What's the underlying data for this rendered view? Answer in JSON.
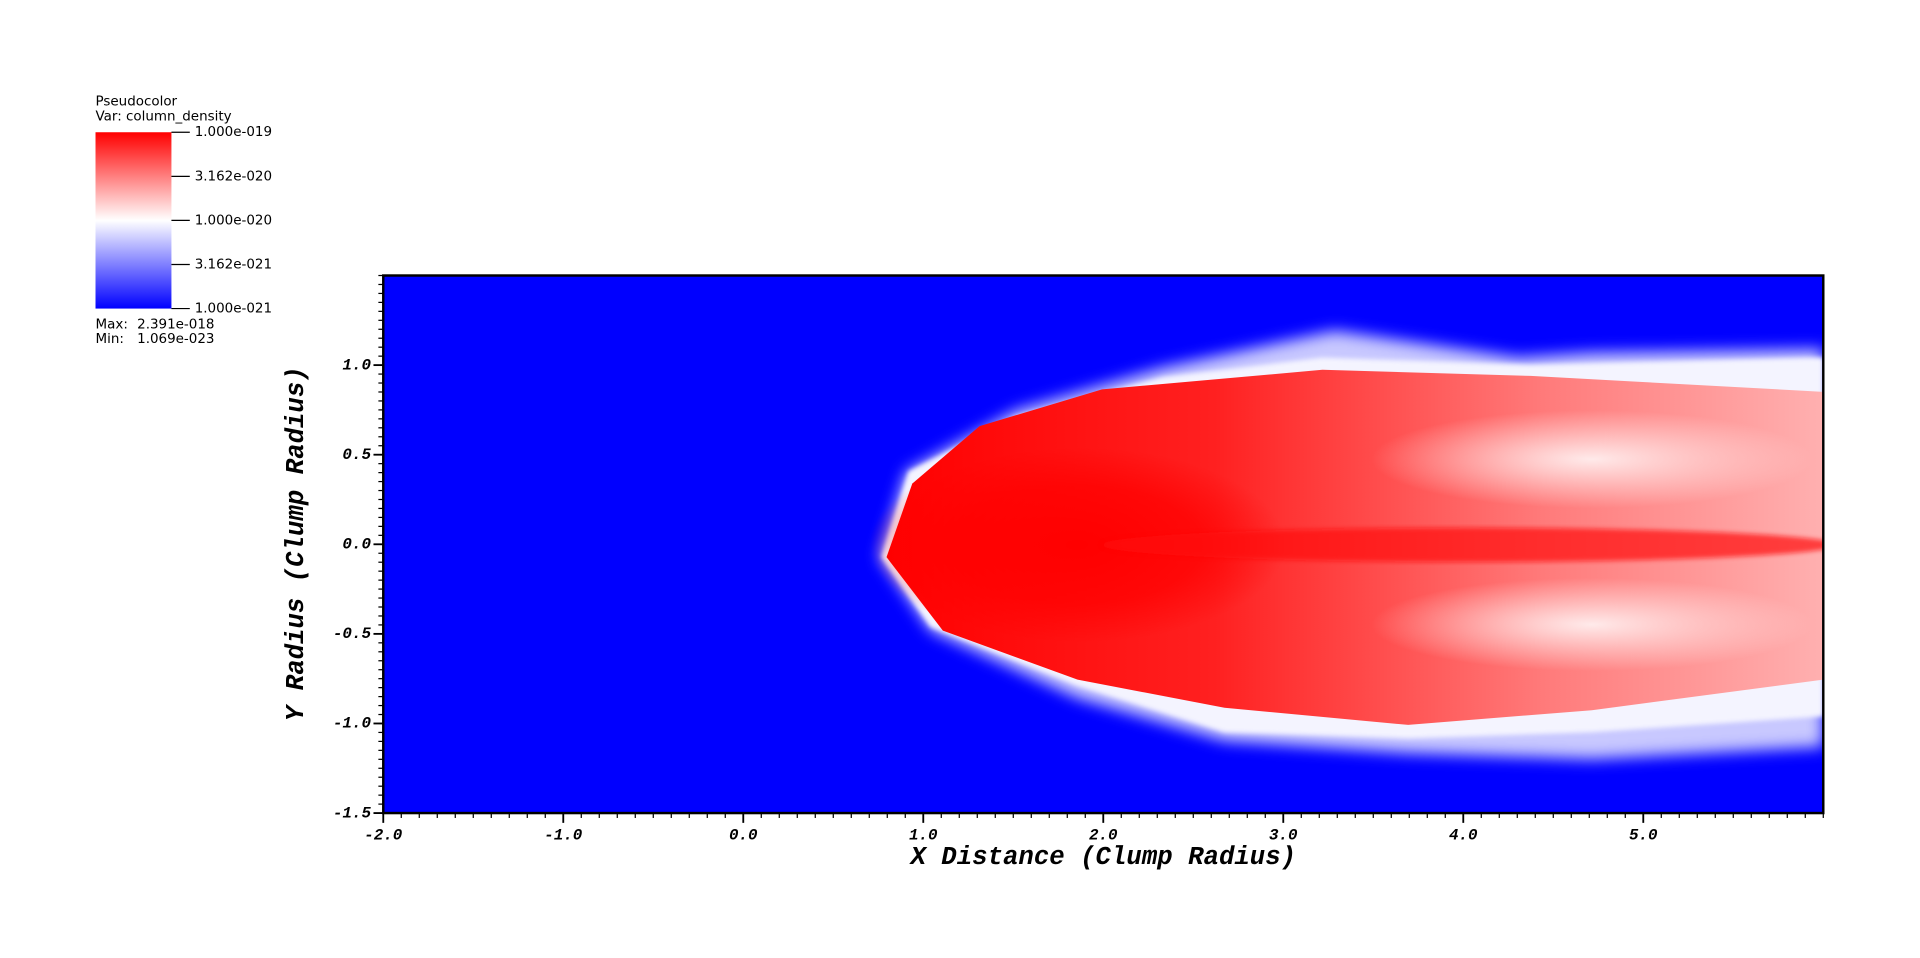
{
  "chart_data": {
    "type": "pseudocolor",
    "xlabel": "X Distance (Clump Radius)",
    "ylabel": "Y Radius (Clump Radius)",
    "xlim": [
      -2,
      6
    ],
    "ylim": [
      -1.5,
      1.5
    ],
    "xticks": [
      {
        "value": -2,
        "label": "-2.0"
      },
      {
        "value": -1,
        "label": "-1.0"
      },
      {
        "value": 0,
        "label": "0.0"
      },
      {
        "value": 1,
        "label": "1.0"
      },
      {
        "value": 2,
        "label": "2.0"
      },
      {
        "value": 3,
        "label": "3.0"
      },
      {
        "value": 4,
        "label": "4.0"
      },
      {
        "value": 5,
        "label": "5.0"
      }
    ],
    "yticks": [
      {
        "value": -1.5,
        "label": "-1.5"
      },
      {
        "value": -1,
        "label": "-1.0"
      },
      {
        "value": -0.5,
        "label": "-0.5"
      },
      {
        "value": 0,
        "label": "0.0"
      },
      {
        "value": 0.5,
        "label": "0.5"
      },
      {
        "value": 1,
        "label": "1.0"
      }
    ],
    "background_color": "#0000ff",
    "legend": {
      "title": "Pseudocolor",
      "variable": "Var: column_density",
      "scale": "log",
      "lim": [
        1e-21,
        1e-19
      ],
      "ticks": [
        {
          "value": 1e-19,
          "label": "1.000e-019"
        },
        {
          "value": 3.162e-20,
          "label": "3.162e-020"
        },
        {
          "value": 1e-20,
          "label": "1.000e-020"
        },
        {
          "value": 3.162e-21,
          "label": "3.162e-021"
        },
        {
          "value": 1e-21,
          "label": "1.000e-021"
        }
      ],
      "colors": [
        "#0000ff",
        "#ffffff",
        "#ff0000"
      ],
      "max_label": "Max:",
      "max": {
        "value": 2.391e-18,
        "label": "2.391e-018"
      },
      "min_label": "Min:",
      "min": {
        "value": 1.069e-23,
        "label": "1.069e-023"
      }
    }
  }
}
